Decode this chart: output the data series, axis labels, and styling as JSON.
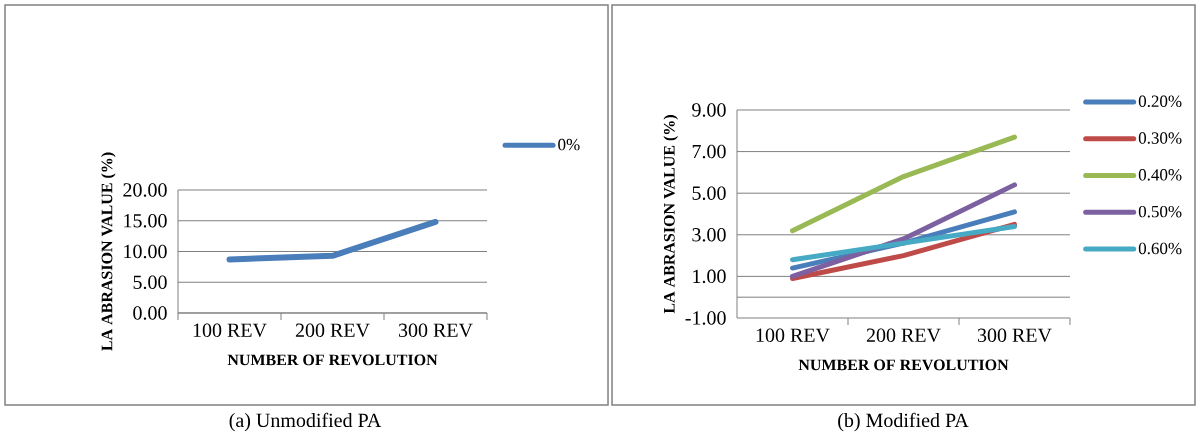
{
  "chart_data": [
    {
      "type": "line",
      "xlabel": "NUMBER OF REVOLUTION",
      "ylabel": "LA ABRASION VALUE (%)",
      "categories": [
        "100 REV",
        "200 REV",
        "300 REV"
      ],
      "series": [
        {
          "name": "0%",
          "color": "#4a7ebb",
          "values": [
            8.7,
            9.3,
            14.8
          ]
        }
      ],
      "ylim": [
        0,
        20
      ],
      "yticks": [
        {
          "value": 0,
          "label": "0.00"
        },
        {
          "value": 5,
          "label": "5.00"
        },
        {
          "value": 10,
          "label": "10.00"
        },
        {
          "value": 15,
          "label": "15.00"
        },
        {
          "value": 20,
          "label": "20.00"
        }
      ],
      "grid": "y",
      "legend": "right",
      "marker": "none",
      "line_style": "solid",
      "annotations": [
        "(a) Unmodified PA"
      ]
    },
    {
      "type": "line",
      "xlabel": "NUMBER OF REVOLUTION",
      "ylabel": "LA ABRASION VALUE (%)",
      "categories": [
        "100 REV",
        "200 REV",
        "300 REV"
      ],
      "series": [
        {
          "name": "0.20%",
          "color": "#4a7ebb",
          "values": [
            1.4,
            2.6,
            4.1
          ]
        },
        {
          "name": "0.30%",
          "color": "#be4b48",
          "values": [
            0.9,
            2.0,
            3.5
          ]
        },
        {
          "name": "0.40%",
          "color": "#98b954",
          "values": [
            3.2,
            5.8,
            7.7
          ]
        },
        {
          "name": "0.50%",
          "color": "#7d60a0",
          "values": [
            1.0,
            2.8,
            5.4
          ]
        },
        {
          "name": "0.60%",
          "color": "#46aac5",
          "values": [
            1.8,
            2.6,
            3.4
          ]
        }
      ],
      "ylim": [
        -1,
        9
      ],
      "yticks": [
        {
          "value": -1,
          "label": "-1.00"
        },
        {
          "value": 1,
          "label": "1.00"
        },
        {
          "value": 3,
          "label": "3.00"
        },
        {
          "value": 5,
          "label": "5.00"
        },
        {
          "value": 7,
          "label": "7.00"
        },
        {
          "value": 9,
          "label": "9.00"
        }
      ],
      "grid": "y",
      "legend": "right",
      "marker": "none",
      "line_style": "solid",
      "annotations": [
        "(b) Modified PA"
      ]
    }
  ]
}
